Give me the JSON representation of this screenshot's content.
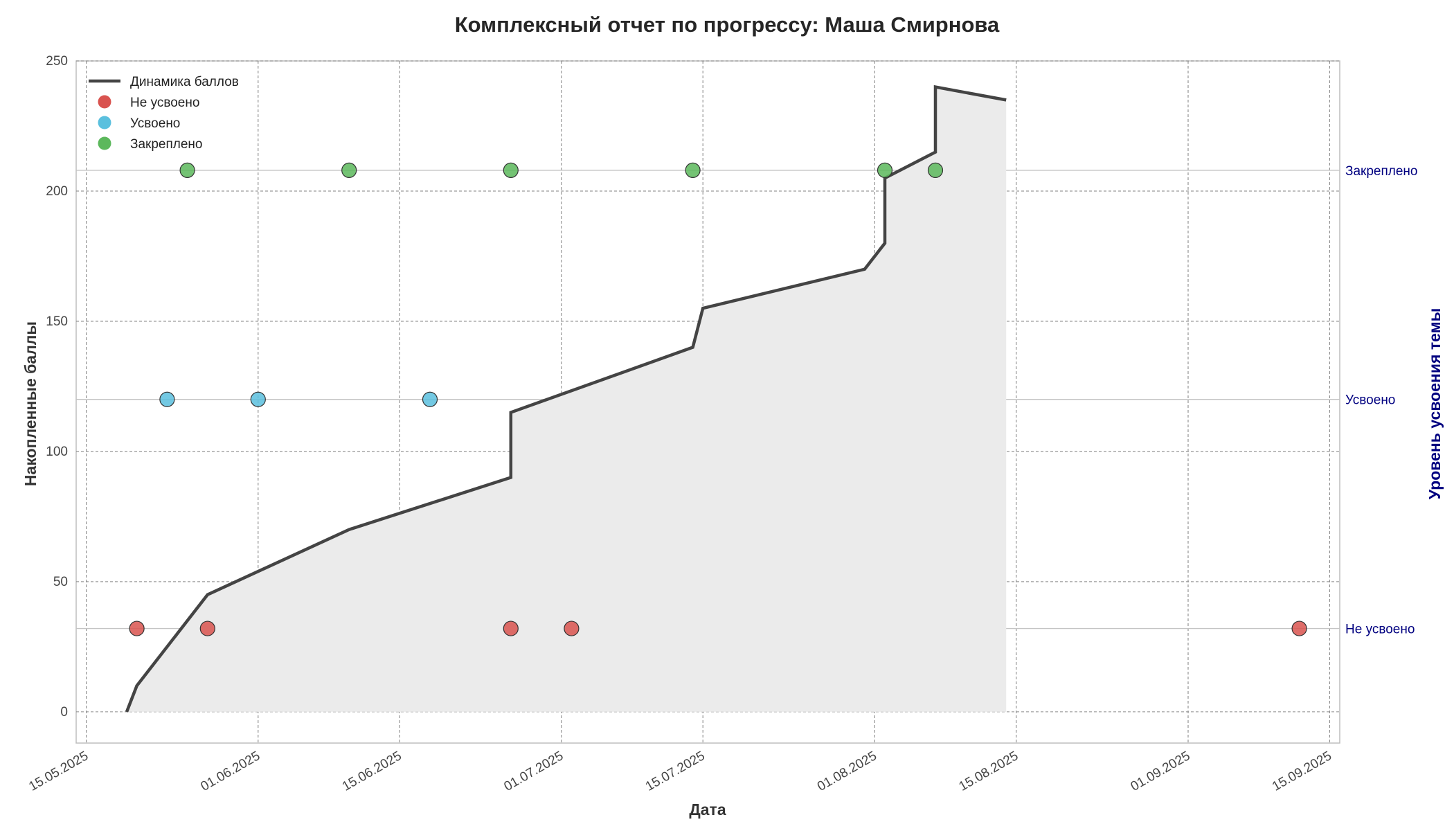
{
  "chart_data": {
    "type": "line",
    "title": "Комплексный отчет по прогрессу: Маша Смирнова",
    "xlabel": "Дата",
    "ylabel": "Накопленные баллы",
    "right_ylabel": "Уровень усвоения темы",
    "xlim": [
      "2025-05-14",
      "2025-09-16"
    ],
    "ylim": [
      -12,
      250
    ],
    "x_ticks": [
      "15.05.2025",
      "01.06.2025",
      "15.06.2025",
      "01.07.2025",
      "15.07.2025",
      "01.08.2025",
      "15.08.2025",
      "01.09.2025",
      "15.09.2025"
    ],
    "y_ticks": [
      "0",
      "50",
      "100",
      "150",
      "200",
      "250"
    ],
    "grid": true,
    "legend_position": "top-left",
    "score_line": {
      "name": "Динамика баллов",
      "color": "#444444",
      "fill_color": "#ebebeb",
      "points": [
        {
          "x": "2025-05-19",
          "y": 0
        },
        {
          "x": "2025-05-20",
          "y": 10
        },
        {
          "x": "2025-05-27",
          "y": 45
        },
        {
          "x": "2025-06-10",
          "y": 70
        },
        {
          "x": "2025-06-26",
          "y": 90
        },
        {
          "x": "2025-06-26",
          "y": 115
        },
        {
          "x": "2025-07-14",
          "y": 140
        },
        {
          "x": "2025-07-15",
          "y": 155
        },
        {
          "x": "2025-07-31",
          "y": 170
        },
        {
          "x": "2025-08-02",
          "y": 180
        },
        {
          "x": "2025-08-02",
          "y": 205
        },
        {
          "x": "2025-08-07",
          "y": 215
        },
        {
          "x": "2025-08-07",
          "y": 240
        },
        {
          "x": "2025-08-14",
          "y": 235
        }
      ]
    },
    "mastery_levels": [
      {
        "label": "Не усвоено",
        "y": 32,
        "color": "#d9534f"
      },
      {
        "label": "Усвоено",
        "y": 120,
        "color": "#5bc0de"
      },
      {
        "label": "Закреплено",
        "y": 208,
        "color": "#5cb85c"
      }
    ],
    "mastery_points": [
      {
        "x": "2025-05-20",
        "level": "Не усвоено"
      },
      {
        "x": "2025-05-23",
        "level": "Усвоено"
      },
      {
        "x": "2025-05-25",
        "level": "Закреплено"
      },
      {
        "x": "2025-05-27",
        "level": "Не усвоено"
      },
      {
        "x": "2025-06-01",
        "level": "Усвоено"
      },
      {
        "x": "2025-06-10",
        "level": "Закреплено"
      },
      {
        "x": "2025-06-18",
        "level": "Усвоено"
      },
      {
        "x": "2025-06-26",
        "level": "Не усвоено"
      },
      {
        "x": "2025-06-26",
        "level": "Закреплено"
      },
      {
        "x": "2025-07-02",
        "level": "Не усвоено"
      },
      {
        "x": "2025-07-14",
        "level": "Закреплено"
      },
      {
        "x": "2025-08-02",
        "level": "Закреплено"
      },
      {
        "x": "2025-08-07",
        "level": "Закреплено"
      },
      {
        "x": "2025-09-12",
        "level": "Не усвоено"
      }
    ],
    "legend": [
      {
        "label": "Динамика баллов",
        "kind": "line",
        "color": "#444444"
      },
      {
        "label": "Не усвоено",
        "kind": "marker",
        "color": "#d9534f"
      },
      {
        "label": "Усвоено",
        "kind": "marker",
        "color": "#5bc0de"
      },
      {
        "label": "Закреплено",
        "kind": "marker",
        "color": "#5cb85c"
      }
    ]
  }
}
